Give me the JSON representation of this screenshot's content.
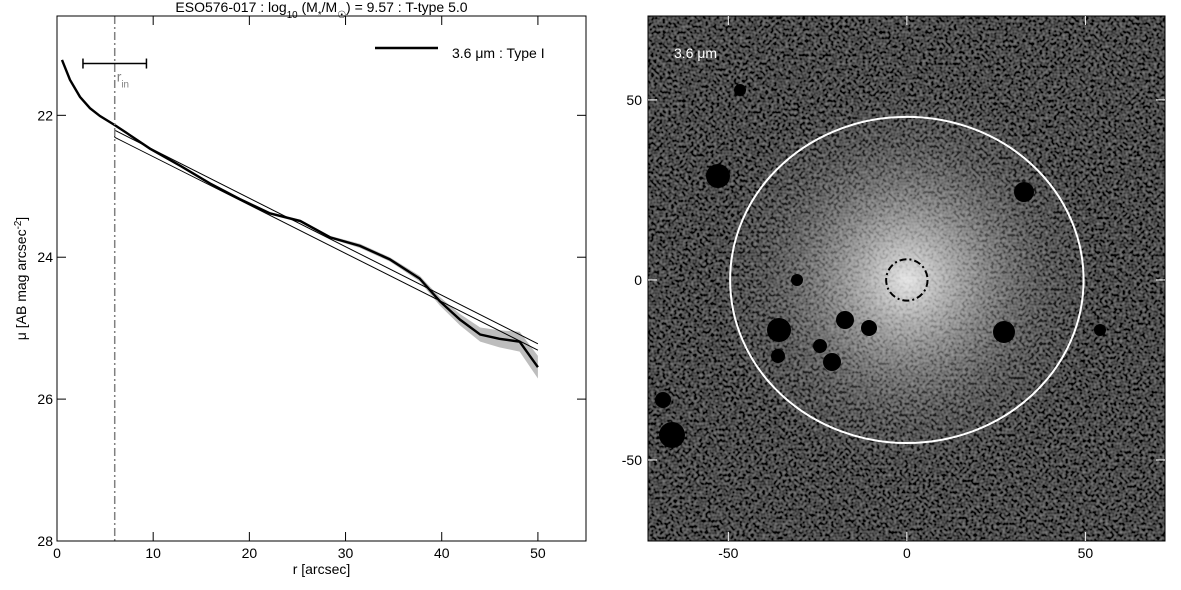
{
  "chart_data": [
    {
      "type": "line",
      "title_parts": [
        {
          "text": "ESO576-017 : log"
        },
        {
          "text": "10",
          "sub": true
        },
        {
          "text": " (M"
        },
        {
          "text": "*",
          "sub": true
        },
        {
          "text": "/M"
        },
        {
          "text": "☉",
          "sub": true
        },
        {
          "text": ") = 9.57 : T-type 5.0"
        }
      ],
      "xlabel": "r [arcsec]",
      "ylabel_parts": [
        {
          "text": "μ [AB mag arcsec"
        },
        {
          "text": "-2",
          "sup": true
        },
        {
          "text": "]"
        }
      ],
      "xlim": [
        0,
        55
      ],
      "ylim": [
        20.6,
        28
      ],
      "y_inverted": true,
      "xticks": [
        0,
        10,
        20,
        30,
        40,
        50
      ],
      "yticks": [
        22,
        24,
        26,
        28
      ],
      "x": [
        0.52,
        1.35,
        2.39,
        3.43,
        4.47,
        6.03,
        7.59,
        9.67,
        12.8,
        15.9,
        19.0,
        22.1,
        25.3,
        28.4,
        31.5,
        34.6,
        37.7,
        39.8,
        41.9,
        44.0,
        46.0,
        48.1,
        50.0
      ],
      "series": [
        {
          "name": "3.6 μm : Type I",
          "color": "#000000",
          "values": [
            21.22,
            21.5,
            21.74,
            21.9,
            22.01,
            22.14,
            22.28,
            22.47,
            22.71,
            22.96,
            23.18,
            23.38,
            23.49,
            23.72,
            23.84,
            24.03,
            24.3,
            24.62,
            24.88,
            25.09,
            25.15,
            25.19,
            25.55
          ],
          "errors": [
            0.01,
            0.01,
            0.01,
            0.01,
            0.01,
            0.01,
            0.01,
            0.01,
            0.01,
            0.01,
            0.02,
            0.02,
            0.02,
            0.02,
            0.03,
            0.03,
            0.04,
            0.06,
            0.08,
            0.1,
            0.12,
            0.14,
            0.16
          ]
        }
      ],
      "fits": [
        {
          "x": [
            6,
            50
          ],
          "values": [
            22.21,
            25.22
          ]
        },
        {
          "x": [
            6,
            50
          ],
          "values": [
            22.31,
            25.31
          ]
        }
      ],
      "r_in": {
        "value": 6,
        "label_parts": [
          {
            "text": "r"
          },
          {
            "text": "in",
            "sub": true
          }
        ],
        "range": [
          2.7,
          9.3
        ],
        "y": 21.27,
        "color": "#808080"
      },
      "legend": "upper right"
    },
    {
      "type": "image",
      "label": "3.6 μm",
      "xlim": [
        -72.5,
        72.3
      ],
      "ylim": [
        -72.5,
        73.3
      ],
      "xticks": [
        -50,
        0,
        50
      ],
      "yticks": [
        -50,
        0,
        50
      ],
      "aperture": {
        "x": 0,
        "y": 0,
        "rx": 49.5,
        "ry": 45.3
      },
      "inner": {
        "x": 0,
        "y": 0,
        "r": 5.8
      }
    }
  ]
}
